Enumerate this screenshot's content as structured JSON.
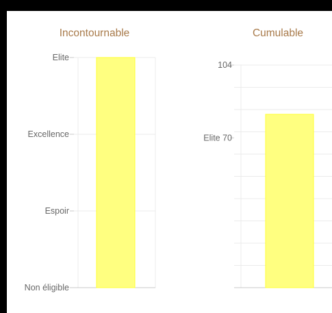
{
  "colors": {
    "title": "#a87a4a",
    "tick_label": "#666666",
    "grid": "#ebebeb",
    "axis": "#c8c8c8",
    "bar_fill": "#ffff80",
    "bar_stroke": "#ffff33",
    "frame": "#000000"
  },
  "chart_data": [
    {
      "type": "bar",
      "title": "Incontournable",
      "categories": [
        ""
      ],
      "values": [
        3
      ],
      "ylim": [
        0,
        3
      ],
      "y_ticks": [
        "Non éligible",
        "Espoir",
        "Excellence",
        "Elite"
      ],
      "grid": true
    },
    {
      "type": "bar",
      "title": "Cumulable",
      "categories": [
        ""
      ],
      "values": [
        81
      ],
      "ylim": [
        0,
        104
      ],
      "y_ticks": [
        {
          "value": 104,
          "label": "104"
        },
        {
          "value": 70,
          "label": "Elite 70"
        }
      ],
      "grid": true
    }
  ]
}
